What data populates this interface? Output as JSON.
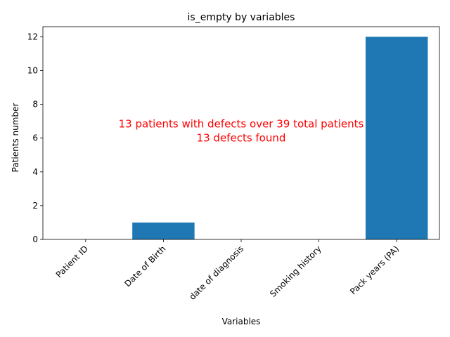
{
  "chart_data": {
    "type": "bar",
    "title": "is_empty by variables",
    "xlabel": "Variables",
    "ylabel": "Patients number",
    "categories": [
      "Patient ID",
      "Date of Birth",
      "date of diagnosis",
      "Smoking history",
      "Pack years (PA)"
    ],
    "values": [
      0,
      1,
      0,
      0,
      12
    ],
    "ylim": [
      0,
      12.6
    ],
    "yticks": [
      0,
      2,
      4,
      6,
      8,
      10,
      12
    ],
    "grid": false,
    "bar_color": "#1f77b4",
    "annotation": {
      "lines": [
        "13 patients with defects over 39 total patients",
        "13 defects found"
      ],
      "color": "#ff0000"
    }
  }
}
